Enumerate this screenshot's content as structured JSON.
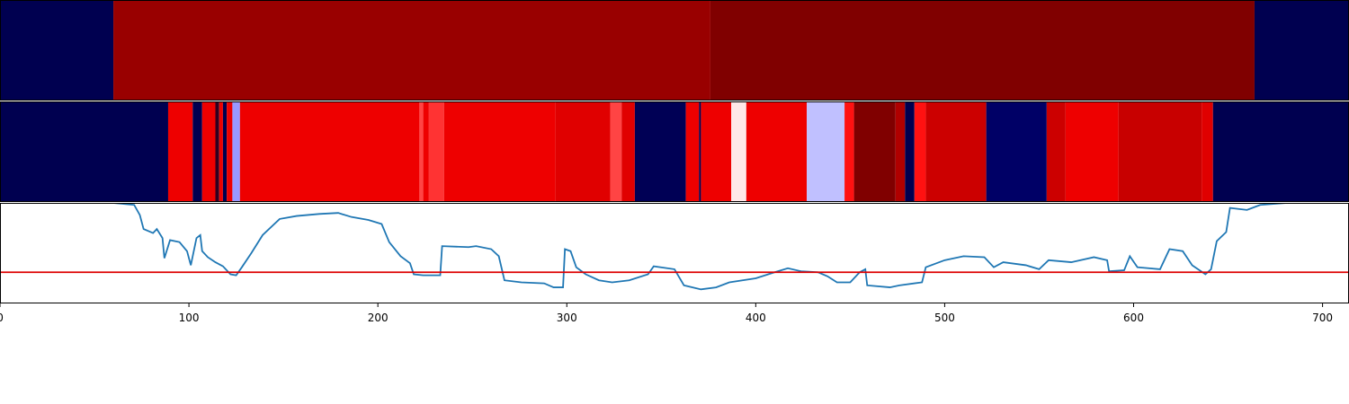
{
  "chart_data": [
    {
      "type": "strip",
      "xlim": [
        0,
        714
      ],
      "bins": [
        0,
        60,
        376,
        664,
        714
      ],
      "colors": [
        "#000050",
        "#990000",
        "#800000",
        "#000050"
      ]
    },
    {
      "type": "strip",
      "xlim": [
        0,
        714
      ],
      "bins": [
        0,
        89,
        102,
        107,
        114,
        116,
        118,
        120,
        123,
        127,
        222,
        224,
        227,
        235,
        294,
        323,
        329,
        336,
        363,
        370,
        371,
        387,
        395,
        427,
        447,
        452,
        474,
        479,
        484,
        490,
        522,
        554,
        564,
        592,
        636,
        642,
        714
      ],
      "colors": [
        "#000050",
        "#ee0000",
        "#000050",
        "#ee0000",
        "#300020",
        "#ee0000",
        "#000050",
        "#ee0000",
        "#9999ff",
        "#ee0000",
        "#ff4444",
        "#ee0000",
        "#ff3333",
        "#ee0000",
        "#e00000",
        "#ff4444",
        "#e00000",
        "#000055",
        "#ee0000",
        "#000050",
        "#ee0000",
        "#ffe8e8",
        "#ee0000",
        "#c0c0ff",
        "#ff1111",
        "#800000",
        "#b00000",
        "#000050",
        "#ff1111",
        "#cc0000",
        "#000066",
        "#cc0000",
        "#ee0000",
        "#c80000",
        "#e00000",
        "#000050"
      ]
    },
    {
      "type": "line",
      "xlim": [
        0,
        714
      ],
      "ylim": [
        0,
        100
      ],
      "color": "#1f77b4",
      "xticks": [
        0,
        100,
        200,
        300,
        400,
        500,
        600,
        700
      ],
      "hline": {
        "value": 31,
        "color": "#dd0000"
      },
      "x": [
        60,
        71,
        74,
        76,
        81,
        83,
        86,
        87,
        90,
        95,
        99,
        101,
        104,
        106,
        107,
        110,
        114,
        118,
        122,
        125,
        128,
        133,
        139,
        148,
        157,
        169,
        179,
        186,
        195,
        202,
        206,
        212,
        217,
        219,
        224,
        233,
        234,
        248,
        252,
        260,
        264,
        267,
        276,
        288,
        293,
        298,
        299,
        302,
        305,
        310,
        317,
        324,
        333,
        343,
        346,
        357,
        362,
        371,
        379,
        386,
        400,
        410,
        417,
        424,
        433,
        438,
        443,
        450,
        455,
        458,
        459,
        471,
        476,
        488,
        490,
        500,
        510,
        521,
        526,
        531,
        543,
        550,
        555,
        567,
        579,
        586,
        587,
        595,
        598,
        602,
        614,
        619,
        626,
        631,
        638,
        641,
        644,
        649,
        651,
        660,
        667,
        681
      ],
      "values": [
        100,
        98,
        88,
        74,
        70,
        74,
        65,
        45,
        63,
        61,
        52,
        38,
        65,
        68,
        52,
        46,
        41,
        37,
        29,
        28,
        36,
        50,
        68,
        84,
        87,
        89,
        90,
        86,
        83,
        79,
        61,
        47,
        40,
        29,
        28,
        28,
        57,
        56,
        57,
        54,
        47,
        23,
        21,
        20,
        16,
        16,
        54,
        52,
        36,
        29,
        23,
        21,
        23,
        29,
        37,
        34,
        18,
        14,
        16,
        21,
        25,
        31,
        35,
        32,
        31,
        27,
        21,
        21,
        31,
        34,
        18,
        16,
        18,
        21,
        36,
        43,
        47,
        46,
        36,
        41,
        38,
        34,
        43,
        41,
        46,
        43,
        32,
        33,
        47,
        36,
        34,
        54,
        52,
        38,
        29,
        34,
        62,
        71,
        95,
        93,
        98,
        100
      ]
    }
  ]
}
